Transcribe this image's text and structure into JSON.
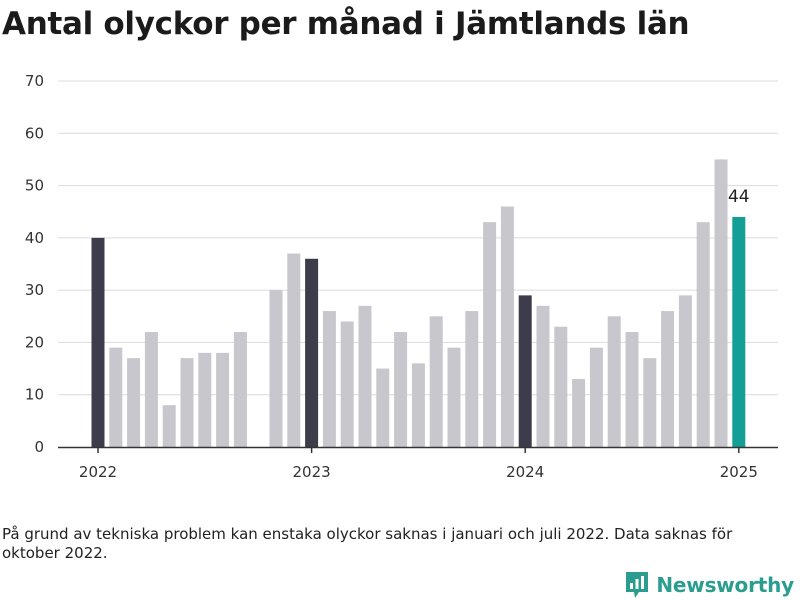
{
  "title": "Antal olyckor per månad i Jämtlands län",
  "footnote": "På grund av tekniska problem kan enstaka olyckor saknas i januari och juli 2022. Data saknas för oktober 2022.",
  "brand": {
    "name": "Newsworthy",
    "icon": "newsworthy-logo-icon",
    "color": "#2a9d8f"
  },
  "colors": {
    "default": "#c8c7ce",
    "january": "#3d3c4a",
    "latest": "#149f96",
    "grid": "#dcdcdc",
    "axis": "#333333"
  },
  "chart_data": {
    "type": "bar",
    "title": "Antal olyckor per månad i Jämtlands län",
    "xlabel": "",
    "ylabel": "",
    "ylim": [
      0,
      70
    ],
    "yticks": [
      0,
      10,
      20,
      30,
      40,
      50,
      60,
      70
    ],
    "xticks": [
      {
        "label": "2022",
        "index": 0
      },
      {
        "label": "2023",
        "index": 12
      },
      {
        "label": "2024",
        "index": 24
      },
      {
        "label": "2025",
        "index": 36
      }
    ],
    "categories": [
      "2022-01",
      "2022-02",
      "2022-03",
      "2022-04",
      "2022-05",
      "2022-06",
      "2022-07",
      "2022-08",
      "2022-09",
      "2022-10",
      "2022-11",
      "2022-12",
      "2023-01",
      "2023-02",
      "2023-03",
      "2023-04",
      "2023-05",
      "2023-06",
      "2023-07",
      "2023-08",
      "2023-09",
      "2023-10",
      "2023-11",
      "2023-12",
      "2024-01",
      "2024-02",
      "2024-03",
      "2024-04",
      "2024-05",
      "2024-06",
      "2024-07",
      "2024-08",
      "2024-09",
      "2024-10",
      "2024-11",
      "2024-12",
      "2025-01"
    ],
    "values": [
      40,
      19,
      17,
      22,
      8,
      17,
      18,
      18,
      22,
      null,
      30,
      37,
      36,
      26,
      24,
      27,
      15,
      22,
      16,
      25,
      19,
      26,
      43,
      46,
      29,
      27,
      23,
      13,
      19,
      25,
      22,
      17,
      26,
      29,
      43,
      55,
      44
    ],
    "highlight": {
      "january": [
        0,
        12,
        24
      ],
      "latest": 36
    },
    "data_labels": [
      {
        "index": 36,
        "text": "44"
      }
    ],
    "grid": true,
    "legend": "none"
  }
}
